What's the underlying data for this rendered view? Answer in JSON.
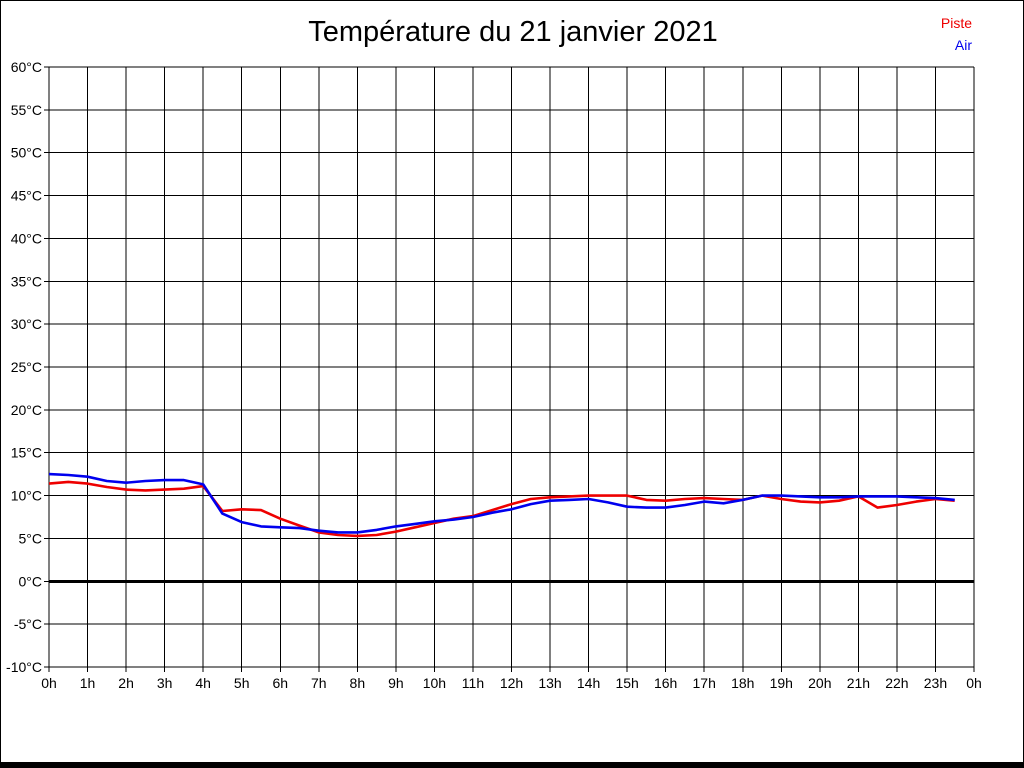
{
  "page": {
    "background": "#ffffff",
    "frame_color": "#000000"
  },
  "chart_data": {
    "type": "line",
    "title": "Température du 21 janvier 2021",
    "xlabel": "",
    "ylabel": "",
    "x_unit": "h",
    "y_unit": "°C",
    "xlim": [
      0,
      24
    ],
    "ylim": [
      -10,
      60
    ],
    "y_tick_step": 5,
    "grid": true,
    "zero_line": true,
    "legend_position": "top-right",
    "x_tick_labels": [
      "0h",
      "1h",
      "2h",
      "3h",
      "4h",
      "5h",
      "6h",
      "7h",
      "8h",
      "9h",
      "10h",
      "11h",
      "12h",
      "13h",
      "14h",
      "15h",
      "16h",
      "17h",
      "18h",
      "19h",
      "20h",
      "21h",
      "22h",
      "23h",
      "0h"
    ],
    "y_tick_labels": [
      "60°C",
      "55°C",
      "50°C",
      "45°C",
      "40°C",
      "35°C",
      "30°C",
      "25°C",
      "20°C",
      "15°C",
      "10°C",
      "5°C",
      "0°C",
      "-5°C",
      "-10°C"
    ],
    "x": [
      0,
      0.5,
      1,
      1.5,
      2,
      2.5,
      3,
      3.5,
      4,
      4.5,
      5,
      5.5,
      6,
      6.5,
      7,
      7.5,
      8,
      8.5,
      9,
      9.5,
      10,
      10.5,
      11,
      11.5,
      12,
      12.5,
      13,
      13.5,
      14,
      14.5,
      15,
      15.5,
      16,
      16.5,
      17,
      17.5,
      18,
      18.5,
      19,
      19.5,
      20,
      20.5,
      21,
      21.5,
      22,
      22.5,
      23,
      23.5
    ],
    "series": [
      {
        "name": "Piste",
        "color": "#ee0000",
        "values": [
          11.4,
          11.6,
          11.4,
          11.0,
          10.7,
          10.6,
          10.7,
          10.8,
          11.1,
          8.2,
          8.4,
          8.3,
          7.3,
          6.5,
          5.7,
          5.4,
          5.3,
          5.4,
          5.8,
          6.3,
          6.8,
          7.3,
          7.6,
          8.3,
          9.0,
          9.6,
          9.8,
          9.9,
          10.0,
          10.0,
          10.0,
          9.5,
          9.4,
          9.6,
          9.7,
          9.6,
          9.5,
          10.0,
          9.6,
          9.3,
          9.2,
          9.4,
          9.9,
          8.6,
          8.9,
          9.3,
          9.6,
          9.4
        ]
      },
      {
        "name": "Air",
        "color": "#0000ee",
        "values": [
          12.5,
          12.4,
          12.2,
          11.7,
          11.5,
          11.7,
          11.8,
          11.8,
          11.3,
          7.9,
          6.9,
          6.4,
          6.3,
          6.2,
          5.9,
          5.7,
          5.7,
          6.0,
          6.4,
          6.7,
          7.0,
          7.2,
          7.5,
          8.0,
          8.4,
          9.0,
          9.4,
          9.5,
          9.6,
          9.2,
          8.7,
          8.6,
          8.6,
          8.9,
          9.3,
          9.1,
          9.5,
          10.0,
          10.0,
          9.9,
          9.8,
          9.8,
          9.9,
          9.9,
          9.9,
          9.8,
          9.7,
          9.5
        ]
      }
    ]
  }
}
